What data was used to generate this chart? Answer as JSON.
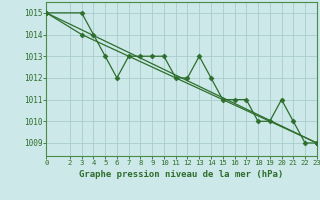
{
  "background_color": "#cde8e8",
  "grid_color": "#a8cccc",
  "line_color": "#2d6e2d",
  "spine_color": "#4a8a4a",
  "title": "Graphe pression niveau de la mer (hPa)",
  "xlim": [
    0,
    23
  ],
  "ylim": [
    1008.4,
    1015.5
  ],
  "yticks": [
    1009,
    1010,
    1011,
    1012,
    1013,
    1014,
    1015
  ],
  "xticks": [
    0,
    2,
    3,
    4,
    5,
    6,
    7,
    8,
    9,
    10,
    11,
    12,
    13,
    14,
    15,
    16,
    17,
    18,
    19,
    20,
    21,
    22,
    23
  ],
  "series1_x": [
    0,
    3,
    4,
    5,
    6,
    7,
    8,
    9,
    10,
    11,
    12,
    13,
    14,
    15,
    16,
    17,
    18,
    19,
    20,
    21,
    22,
    23
  ],
  "series1_y": [
    1015.0,
    1015.0,
    1014.0,
    1013.0,
    1012.0,
    1013.0,
    1013.0,
    1013.0,
    1013.0,
    1012.0,
    1012.0,
    1013.0,
    1012.0,
    1011.0,
    1011.0,
    1011.0,
    1010.0,
    1010.0,
    1011.0,
    1010.0,
    1009.0,
    1009.0
  ],
  "series2_x": [
    0,
    23
  ],
  "series2_y": [
    1015.0,
    1009.0
  ],
  "series3_x": [
    0,
    3,
    23
  ],
  "series3_y": [
    1015.0,
    1014.0,
    1009.0
  ]
}
